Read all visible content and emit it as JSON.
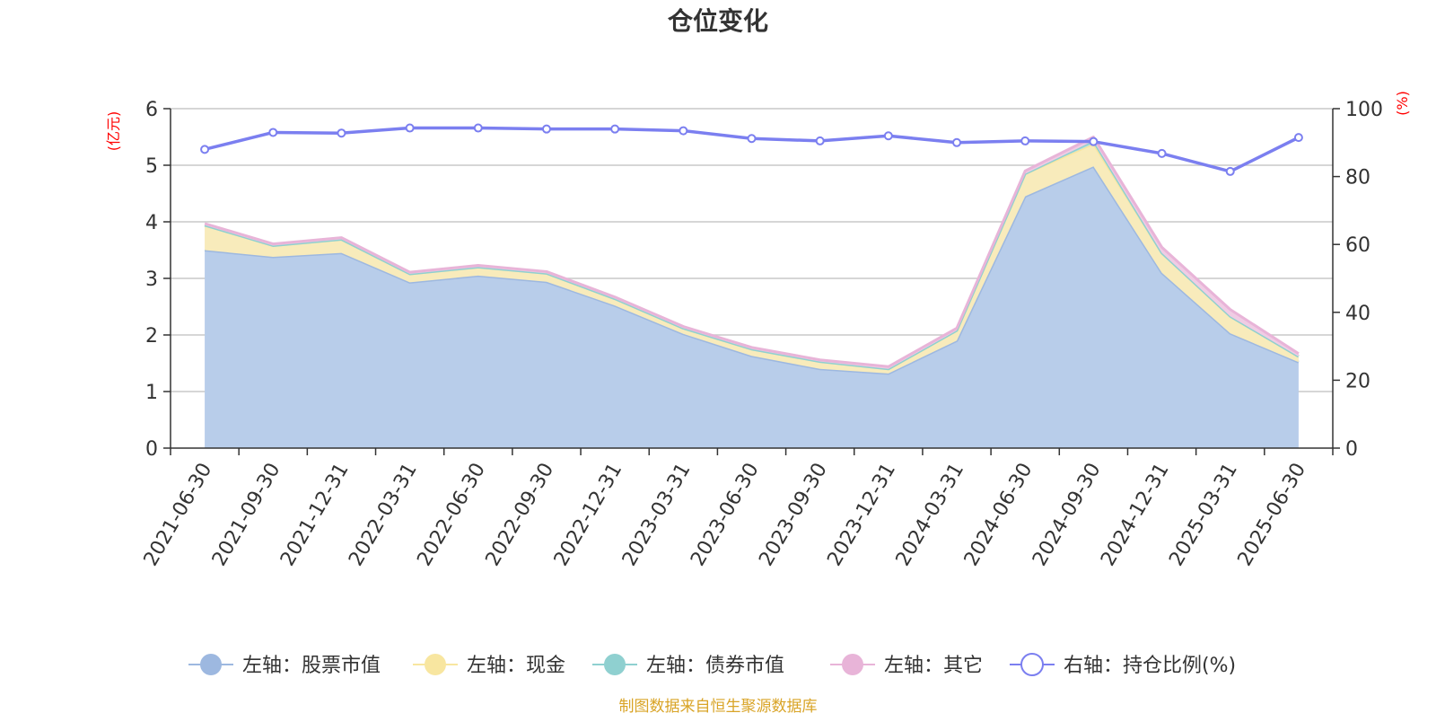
{
  "chart_data": {
    "type": "area",
    "title": "仓位变化",
    "left_axis_unit": "(亿元)",
    "right_axis_unit": "(%)",
    "categories": [
      "2021-06-30",
      "2021-09-30",
      "2021-12-31",
      "2022-03-31",
      "2022-06-30",
      "2022-09-30",
      "2022-12-31",
      "2023-03-31",
      "2023-06-30",
      "2023-09-30",
      "2023-12-31",
      "2024-03-31",
      "2024-06-30",
      "2024-09-30",
      "2024-12-31",
      "2025-03-31",
      "2025-06-30"
    ],
    "y_left": {
      "min": 0,
      "max": 6,
      "ticks": [
        0,
        1,
        2,
        3,
        4,
        5,
        6
      ]
    },
    "y_right": {
      "min": 0,
      "max": 100,
      "ticks": [
        0,
        20,
        40,
        60,
        80,
        100
      ]
    },
    "grid": true,
    "legend_position": "bottom",
    "series": [
      {
        "name": "左轴：股票市值",
        "axis": "left",
        "stacked": true,
        "color": "#9db8e0",
        "fill": "#b8cdea",
        "values": [
          3.5,
          3.38,
          3.45,
          2.93,
          3.05,
          2.94,
          2.52,
          2.02,
          1.63,
          1.4,
          1.32,
          1.9,
          4.45,
          4.98,
          3.1,
          2.03,
          1.52
        ]
      },
      {
        "name": "左轴：现金",
        "axis": "left",
        "stacked": true,
        "color": "#f8e6a0",
        "fill": "#f8ebbb",
        "values": [
          0.44,
          0.2,
          0.24,
          0.15,
          0.15,
          0.15,
          0.12,
          0.1,
          0.12,
          0.13,
          0.08,
          0.18,
          0.4,
          0.4,
          0.35,
          0.3,
          0.1
        ]
      },
      {
        "name": "左轴：债券市值",
        "axis": "left",
        "stacked": true,
        "color": "#8fd0d0",
        "fill": "#b5e0e0",
        "values": [
          0,
          0,
          0,
          0,
          0,
          0,
          0,
          0,
          0,
          0,
          0,
          0,
          0,
          0.05,
          0,
          0,
          0
        ]
      },
      {
        "name": "左轴：其它",
        "axis": "left",
        "stacked": true,
        "color": "#e8b4d8",
        "fill": "#f0cce4",
        "values": [
          0.03,
          0.03,
          0.03,
          0.03,
          0.03,
          0.03,
          0.03,
          0.03,
          0.03,
          0.03,
          0.04,
          0.04,
          0.05,
          0.07,
          0.1,
          0.12,
          0.05
        ]
      },
      {
        "name": "右轴：持仓比例(%)",
        "axis": "right",
        "type": "line",
        "color": "#7b7ff0",
        "values": [
          88,
          93,
          92.8,
          94.3,
          94.3,
          94,
          94,
          93.5,
          91.2,
          90.5,
          92,
          90,
          90.5,
          90.3,
          86.8,
          81.5,
          91.5
        ]
      }
    ]
  },
  "footer": {
    "source": "制图数据来自恒生聚源数据库"
  }
}
